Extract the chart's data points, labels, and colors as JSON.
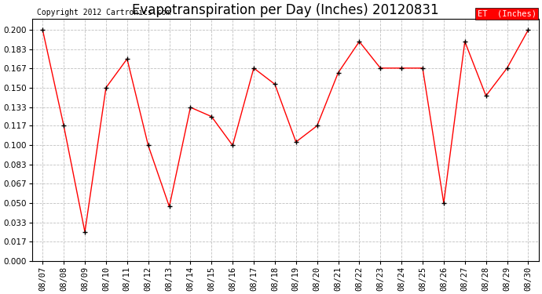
{
  "title": "Evapotranspiration per Day (Inches) 20120831",
  "copyright": "Copyright 2012 Cartronics.com",
  "legend_label": "ET  (Inches)",
  "dates": [
    "08/07",
    "08/08",
    "08/09",
    "08/10",
    "08/11",
    "08/12",
    "08/13",
    "08/14",
    "08/15",
    "08/16",
    "08/17",
    "08/18",
    "08/19",
    "08/20",
    "08/21",
    "08/22",
    "08/23",
    "08/24",
    "08/25",
    "08/26",
    "08/27",
    "08/28",
    "08/29",
    "08/30"
  ],
  "values": [
    0.2,
    0.117,
    0.025,
    0.15,
    0.175,
    0.1,
    0.047,
    0.133,
    0.125,
    0.1,
    0.167,
    0.153,
    0.103,
    0.117,
    0.163,
    0.19,
    0.167,
    0.167,
    0.167,
    0.05,
    0.19,
    0.143,
    0.167,
    0.2
  ],
  "ylim": [
    0.0,
    0.2099
  ],
  "yticks": [
    0.0,
    0.017,
    0.033,
    0.05,
    0.067,
    0.083,
    0.1,
    0.117,
    0.133,
    0.15,
    0.167,
    0.183,
    0.2
  ],
  "line_color": "#ff0000",
  "marker_color": "#000000",
  "background_color": "#ffffff",
  "grid_color": "#c0c0c0",
  "legend_bg": "#ff0000",
  "legend_text_color": "#ffffff",
  "title_fontsize": 12,
  "tick_fontsize": 7.5,
  "copyright_fontsize": 7
}
